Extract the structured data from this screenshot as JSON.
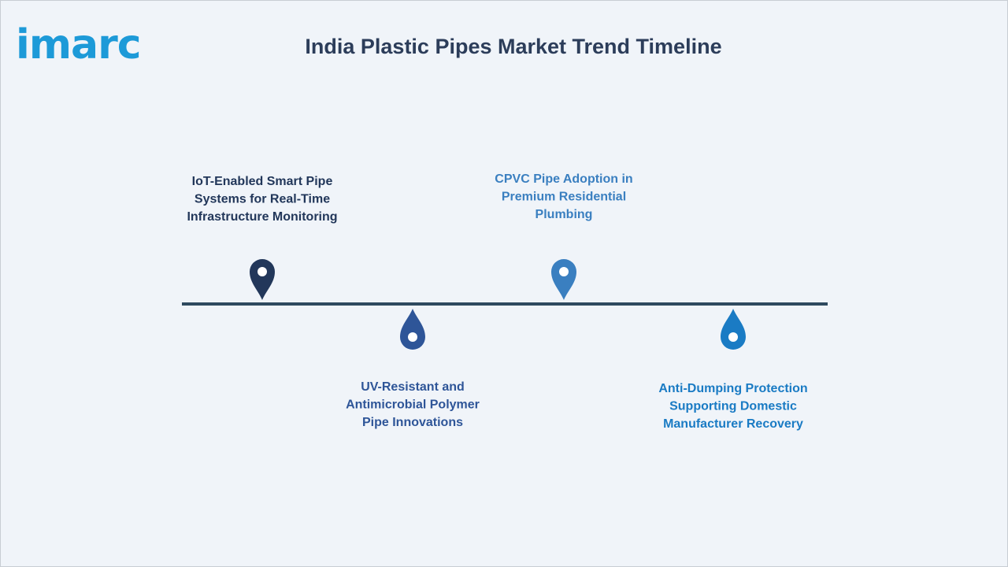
{
  "logo": "imarc",
  "title": "India Plastic Pipes Market Trend Timeline",
  "items": [
    {
      "lines": [
        "IoT-Enabled Smart Pipe",
        "Systems for Real-Time",
        "Infrastructure Monitoring"
      ]
    },
    {
      "lines": [
        "UV-Resistant and",
        "Antimicrobial Polymer",
        "Pipe Innovations"
      ]
    },
    {
      "lines": [
        "CPVC Pipe Adoption in",
        "Premium Residential",
        "Plumbing"
      ]
    },
    {
      "lines": [
        "Anti-Dumping Protection",
        "Supporting Domestic",
        "Manufacturer Recovery"
      ]
    }
  ]
}
